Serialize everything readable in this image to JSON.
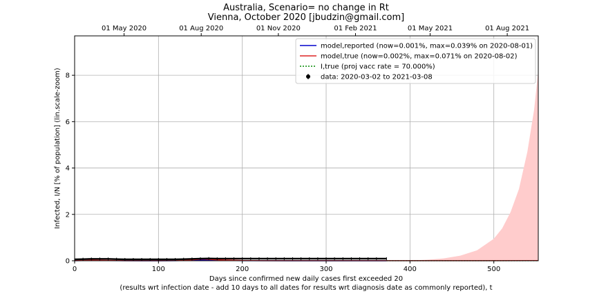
{
  "chart_data": {
    "type": "line",
    "title": "Australia, Scenario= no change in Rt",
    "subtitle": "Vienna, October 2020 [jbudzin@gmail.com]",
    "xlabel": "Days since confirmed new daily cases first exceeded 20",
    "xlabel2": "(results wrt infection date - add 10 days to all dates for results wrt diagnosis date as commonly reported), t",
    "ylabel": "Infected, I/N [% of population] (lin.scale-zoom)",
    "xlim": [
      0,
      553
    ],
    "ylim": [
      0,
      9.7
    ],
    "grid": true,
    "legend_position": "top-right",
    "x_ticks": [
      0,
      100,
      200,
      300,
      400,
      500
    ],
    "x_tick_labels": [
      "0",
      "100",
      "200",
      "300",
      "400",
      "500"
    ],
    "y_ticks": [
      0,
      2,
      4,
      6,
      8
    ],
    "y_tick_labels": [
      "0",
      "2",
      "4",
      "6",
      "8"
    ],
    "top_axis": {
      "ticks": [
        59,
        151,
        243,
        335,
        424,
        516
      ],
      "labels": [
        "01 May 2020",
        "01 Aug 2020",
        "01 Nov 2020",
        "01 Feb 2021",
        "01 May 2021",
        "01 Aug 2021"
      ]
    },
    "legend": [
      {
        "label": "model,reported (now=0.001%, max=0.039% on 2020-08-01)",
        "color": "#0000cc",
        "style": "solid"
      },
      {
        "label": "model,true (now=0.002%, max=0.071% on 2020-08-02)",
        "color": "#dd2222",
        "style": "solid"
      },
      {
        "label": "I,true (proj vacc rate = 70.000%)",
        "color": "#008800",
        "style": "dotted"
      },
      {
        "label": "data: 2020-03-02 to 2021-03-08",
        "color": "#000000",
        "style": "marker"
      }
    ],
    "series": [
      {
        "name": "model,reported (now=0.001%, max=0.039% on 2020-08-01)",
        "color": "#0000cc",
        "x": [
          0,
          20,
          40,
          60,
          80,
          100,
          120,
          140,
          152,
          170,
          200,
          230,
          260,
          300,
          340,
          372
        ],
        "values": [
          0.003,
          0.012,
          0.008,
          0.002,
          0.001,
          0.001,
          0.004,
          0.02,
          0.039,
          0.02,
          0.005,
          0.002,
          0.001,
          0.001,
          0.001,
          0.001
        ]
      },
      {
        "name": "model,true (now=0.002%, max=0.071% on 2020-08-02)",
        "color": "#dd2222",
        "x": [
          0,
          20,
          40,
          60,
          80,
          100,
          120,
          140,
          153,
          170,
          200,
          230,
          260,
          300,
          340,
          372,
          420,
          460,
          500,
          553
        ],
        "values": [
          0.005,
          0.022,
          0.014,
          0.004,
          0.002,
          0.002,
          0.008,
          0.04,
          0.071,
          0.04,
          0.01,
          0.004,
          0.002,
          0.002,
          0.002,
          0.002,
          0.003,
          0.004,
          0.005,
          0.007
        ]
      },
      {
        "name": "data: 2020-03-02 to 2021-03-08",
        "color": "#000000",
        "x": [
          0,
          10,
          20,
          30,
          40,
          50,
          60,
          70,
          80,
          90,
          100,
          110,
          120,
          130,
          140,
          150,
          160,
          170,
          180,
          190,
          200,
          210,
          220,
          230,
          240,
          250,
          260,
          270,
          280,
          290,
          300,
          310,
          320,
          330,
          340,
          350,
          360,
          372
        ],
        "values": [
          0.06,
          0.07,
          0.08,
          0.08,
          0.08,
          0.07,
          0.06,
          0.06,
          0.06,
          0.06,
          0.06,
          0.06,
          0.06,
          0.07,
          0.08,
          0.09,
          0.1,
          0.09,
          0.09,
          0.09,
          0.09,
          0.09,
          0.09,
          0.09,
          0.09,
          0.09,
          0.09,
          0.09,
          0.09,
          0.09,
          0.09,
          0.09,
          0.09,
          0.09,
          0.09,
          0.09,
          0.09,
          0.09
        ]
      }
    ],
    "projection_band": {
      "name": "I,true (proj vacc rate = 70.000%)",
      "color": "#ffcccc",
      "x": [
        372,
        400,
        420,
        440,
        460,
        480,
        500,
        510,
        520,
        530,
        540,
        548,
        553
      ],
      "upper": [
        0.001,
        0.01,
        0.04,
        0.1,
        0.22,
        0.45,
        0.95,
        1.4,
        2.1,
        3.1,
        4.7,
        6.5,
        8.2
      ],
      "lower": [
        0.001,
        0.001,
        0.001,
        0.001,
        0.001,
        0.001,
        0.001,
        0.001,
        0.001,
        0.001,
        0.001,
        0.001,
        0.001
      ]
    },
    "projection_line": {
      "name": "I,true (proj vacc rate = 70.000%)",
      "color": "#008800",
      "x": [
        372,
        553
      ],
      "values": [
        0.002,
        0.002
      ]
    }
  }
}
